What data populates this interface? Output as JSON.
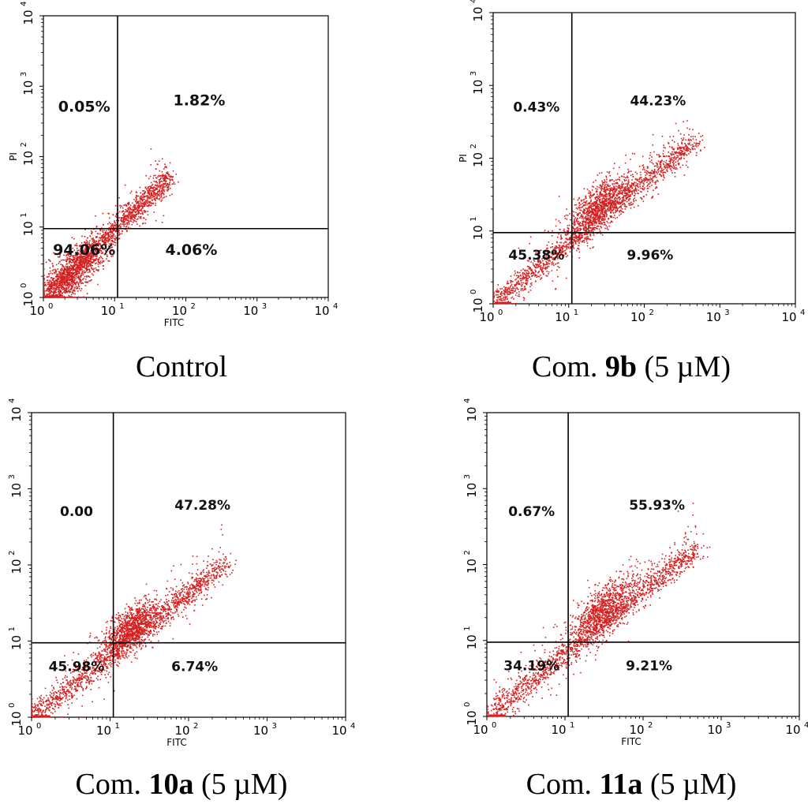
{
  "colors": {
    "dots": "#d42020",
    "axes": "#000000",
    "background": "#ffffff"
  },
  "chart_data": [
    {
      "type": "scatter",
      "caption": {
        "prefix": "Control",
        "bold": "",
        "suffix": ""
      },
      "xlabel": "FITC",
      "ylabel": "PI",
      "xscale": "log",
      "yscale": "log",
      "xlim": [
        1,
        10000
      ],
      "ylim": [
        1,
        10000
      ],
      "x_ticks": [
        "10",
        "10",
        "10",
        "10",
        "10"
      ],
      "x_tick_exps": [
        "0",
        "1",
        "2",
        "3",
        "4"
      ],
      "y_ticks": [
        "10",
        "10",
        "10",
        "10",
        "10"
      ],
      "y_tick_exps": [
        "0",
        "1",
        "2",
        "3",
        "4"
      ],
      "gate": {
        "x": 11,
        "y": 9.5
      },
      "quadrants": {
        "upper_left": "0.05%",
        "upper_right": "1.82%",
        "lower_left": "94.06%",
        "lower_right": "4.06%"
      },
      "population": {
        "center": [
          2.6,
          2.2
        ],
        "max": [
          60,
          65
        ],
        "spread": 0.32
      }
    },
    {
      "type": "scatter",
      "caption": {
        "prefix": "Com. ",
        "bold": "9b",
        "suffix": " (5 µM)"
      },
      "xlabel": "",
      "ylabel": "PI",
      "xscale": "log",
      "yscale": "log",
      "xlim": [
        1,
        10000
      ],
      "ylim": [
        1,
        10000
      ],
      "x_ticks": [
        "10",
        "10",
        "10",
        "10",
        "10"
      ],
      "x_tick_exps": [
        "0",
        "1",
        "2",
        "3",
        "4"
      ],
      "y_ticks": [
        "10",
        "10",
        "10",
        "10",
        "10"
      ],
      "y_tick_exps": [
        "0",
        "1",
        "2",
        "3",
        "4"
      ],
      "gate": {
        "x": 11,
        "y": 9.5
      },
      "quadrants": {
        "upper_left": "0.43%",
        "upper_right": "44.23%",
        "lower_left": "45.38%",
        "lower_right": "9.96%"
      },
      "population": {
        "center": [
          25,
          22
        ],
        "max": [
          450,
          220
        ],
        "spread": 0.28
      }
    },
    {
      "type": "scatter",
      "caption": {
        "prefix": "Com. ",
        "bold": "10a",
        "suffix": " (5 µM)"
      },
      "xlabel": "FITC",
      "ylabel": "",
      "xscale": "log",
      "yscale": "log",
      "xlim": [
        1,
        10000
      ],
      "ylim": [
        1,
        10000
      ],
      "x_ticks": [
        "10",
        "10",
        "10",
        "10",
        "10"
      ],
      "x_tick_exps": [
        "0",
        "1",
        "2",
        "3",
        "4"
      ],
      "y_ticks": [
        "10",
        "10",
        "10",
        "10",
        "10"
      ],
      "y_tick_exps": [
        "0",
        "1",
        "2",
        "3",
        "4"
      ],
      "gate": {
        "x": 11,
        "y": 9.5
      },
      "quadrants": {
        "upper_left": "0.00",
        "upper_right": "47.28%",
        "lower_left": "45.98%",
        "lower_right": "6.74%"
      },
      "population": {
        "center": [
          18,
          15
        ],
        "max": [
          300,
          130
        ],
        "spread": 0.25
      }
    },
    {
      "type": "scatter",
      "caption": {
        "prefix": "Com. ",
        "bold": "11a",
        "suffix": " (5 µM)"
      },
      "xlabel": "FITC",
      "ylabel": "",
      "xscale": "log",
      "yscale": "log",
      "xlim": [
        1,
        10000
      ],
      "ylim": [
        1,
        10000
      ],
      "x_ticks": [
        "10",
        "10",
        "10",
        "10",
        "10"
      ],
      "x_tick_exps": [
        "0",
        "1",
        "2",
        "3",
        "4"
      ],
      "y_ticks": [
        "10",
        "10",
        "10",
        "10",
        "10"
      ],
      "y_tick_exps": [
        "0",
        "1",
        "2",
        "3",
        "4"
      ],
      "gate": {
        "x": 11,
        "y": 9.5
      },
      "quadrants": {
        "upper_left": "0.67%",
        "upper_right": "55.93%",
        "lower_left": "34.19%",
        "lower_right": "9.21%"
      },
      "population": {
        "center": [
          30,
          25
        ],
        "max": [
          500,
          220
        ],
        "spread": 0.3
      }
    }
  ]
}
